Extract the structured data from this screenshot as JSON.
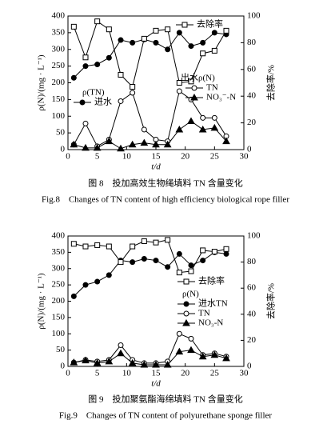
{
  "chart_data": [
    {
      "type": "line",
      "x_label": "t/d",
      "y_label": "ρ(N)/(mg · L⁻¹)",
      "y2_label": "去除率/%",
      "legend_headers": [
        "ρ(TN)",
        "出水ρ(N)"
      ],
      "captions": [
        "图 8　投加高效生物绳填料 TN 含量变化",
        "Fig.8　Changes of TN content of high efficiency biological rope filler"
      ],
      "xlim": [
        0,
        30
      ],
      "xticks": [
        0,
        5,
        10,
        15,
        20,
        25,
        30
      ],
      "ylim": [
        0,
        400
      ],
      "yticks": [
        0,
        50,
        100,
        150,
        200,
        250,
        300,
        350,
        400
      ],
      "y2lim": [
        0,
        100
      ],
      "y2ticks": [
        0,
        20,
        40,
        60,
        80,
        100
      ],
      "x": [
        1,
        3,
        5,
        7,
        9,
        11,
        13,
        15,
        17,
        19,
        21,
        23,
        25,
        27
      ],
      "series": [
        {
          "name": "进水",
          "color": "#000000",
          "marker": "circle-filled",
          "values": [
            215,
            250,
            255,
            275,
            328,
            320,
            330,
            320,
            300,
            350,
            310,
            320,
            350,
            345
          ]
        },
        {
          "name": "TN",
          "color": "#000000",
          "marker": "circle-open",
          "values": [
            15,
            78,
            10,
            30,
            145,
            170,
            60,
            30,
            25,
            175,
            150,
            95,
            95,
            40
          ]
        },
        {
          "name": "NO₃⁻-N",
          "color": "#000000",
          "marker": "triangle-filled",
          "values": [
            15,
            5,
            5,
            25,
            3,
            15,
            20,
            15,
            15,
            60,
            85,
            60,
            65,
            25
          ]
        },
        {
          "name": "去除率",
          "color": "#000000",
          "marker": "square-open",
          "axis": "y2",
          "values": [
            92,
            69,
            96,
            90,
            56,
            47,
            83,
            89,
            90,
            50,
            51,
            72,
            74,
            89
          ]
        }
      ]
    },
    {
      "type": "line",
      "x_label": "t/d",
      "y_label": "ρ(N)/(mg · L⁻¹)",
      "y2_label": "去除率/%",
      "legend_headers": [
        "ρ(N)"
      ],
      "captions": [
        "图 9　投加聚氨酯海绵填料 TN 含量变化",
        "Fig.9　Changes of TN content of polyurethane sponge filler"
      ],
      "xlim": [
        0,
        30
      ],
      "xticks": [
        0,
        5,
        10,
        15,
        20,
        25,
        30
      ],
      "ylim": [
        0,
        400
      ],
      "yticks": [
        0,
        50,
        100,
        150,
        200,
        250,
        300,
        350,
        400
      ],
      "y2lim": [
        0,
        100
      ],
      "y2ticks": [
        0,
        20,
        40,
        60,
        80,
        100
      ],
      "x": [
        1,
        3,
        5,
        7,
        9,
        11,
        13,
        15,
        17,
        19,
        21,
        23,
        25,
        27
      ],
      "series": [
        {
          "name": "进水TN",
          "color": "#000000",
          "marker": "circle-filled",
          "values": [
            215,
            250,
            260,
            280,
            325,
            320,
            330,
            325,
            305,
            345,
            310,
            325,
            350,
            345
          ]
        },
        {
          "name": "TN",
          "color": "#000000",
          "marker": "circle-open",
          "values": [
            12,
            20,
            15,
            20,
            65,
            20,
            10,
            10,
            15,
            100,
            85,
            35,
            40,
            30
          ]
        },
        {
          "name": "NO₃-N",
          "color": "#000000",
          "marker": "triangle-filled",
          "values": [
            12,
            18,
            10,
            15,
            40,
            10,
            5,
            5,
            5,
            45,
            50,
            30,
            35,
            25
          ]
        },
        {
          "name": "去除率",
          "color": "#000000",
          "marker": "square-open",
          "axis": "y2",
          "values": [
            94,
            92,
            93,
            92,
            80,
            92,
            96,
            95,
            97,
            72,
            73,
            89,
            88,
            90
          ]
        }
      ]
    }
  ]
}
